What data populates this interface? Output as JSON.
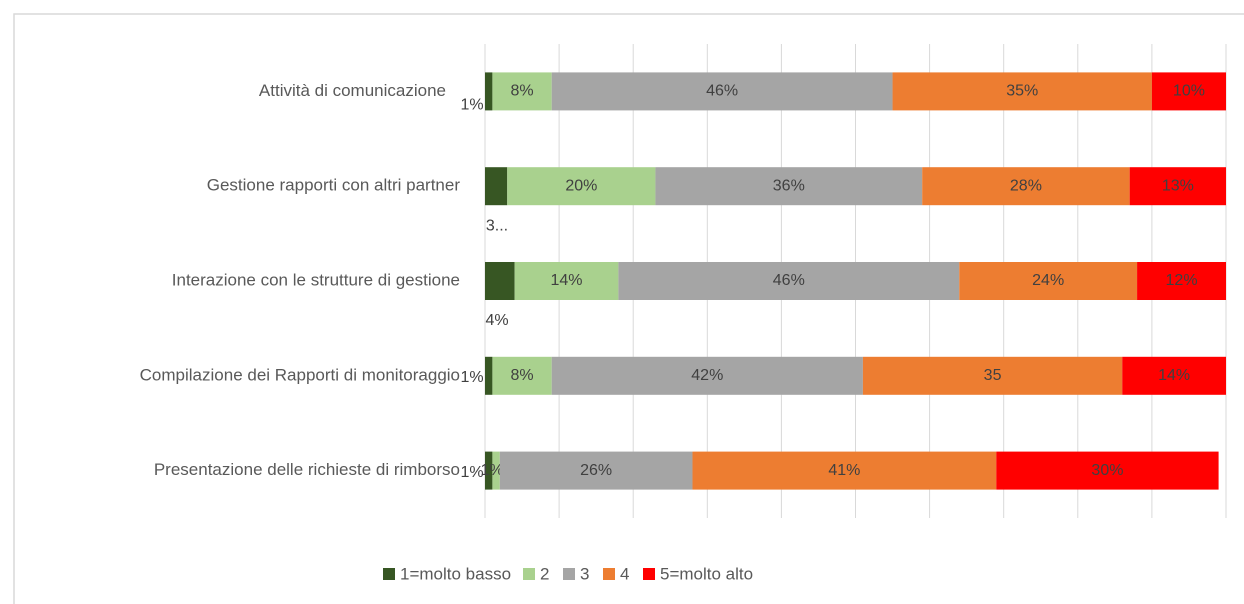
{
  "chart_data": {
    "type": "stacked-bar-horizontal",
    "categories": [
      "Attività di comunicazione",
      "Gestione rapporti con altri partner",
      "Interazione con le strutture di gestione",
      "Compilazione dei Rapporti di monitoraggio",
      "Presentazione delle richieste di rimborso"
    ],
    "series": [
      {
        "name": "1=molto basso",
        "color": "#375623",
        "values": [
          1,
          3,
          4,
          1,
          1
        ],
        "value_labels": [
          "1%",
          "3...",
          "4%",
          "1%",
          "1%"
        ]
      },
      {
        "name": "2",
        "color": "#a9d18e",
        "values": [
          8,
          20,
          14,
          8,
          1
        ],
        "value_labels": [
          "8%",
          "20%",
          "14%",
          "8%",
          "1%"
        ]
      },
      {
        "name": "3",
        "color": "#a5a5a5",
        "values": [
          46,
          36,
          46,
          42,
          26
        ],
        "value_labels": [
          "46%",
          "36%",
          "46%",
          "42%",
          "26%"
        ]
      },
      {
        "name": "4",
        "color": "#ed7d31",
        "values": [
          35,
          28,
          24,
          35,
          41
        ],
        "value_labels": [
          "35%",
          "28%",
          "24%",
          "35",
          "41%"
        ]
      },
      {
        "name": "5=molto alto",
        "color": "#ff0000",
        "values": [
          10,
          13,
          12,
          14,
          30
        ],
        "value_labels": [
          "10%",
          "13%",
          "12%",
          "14%",
          "30%"
        ]
      }
    ],
    "xlim": [
      0,
      100
    ],
    "xticks": [
      0,
      10,
      20,
      30,
      40,
      50,
      60,
      70,
      80,
      90,
      100
    ],
    "grid": true,
    "legend": "bottom"
  }
}
